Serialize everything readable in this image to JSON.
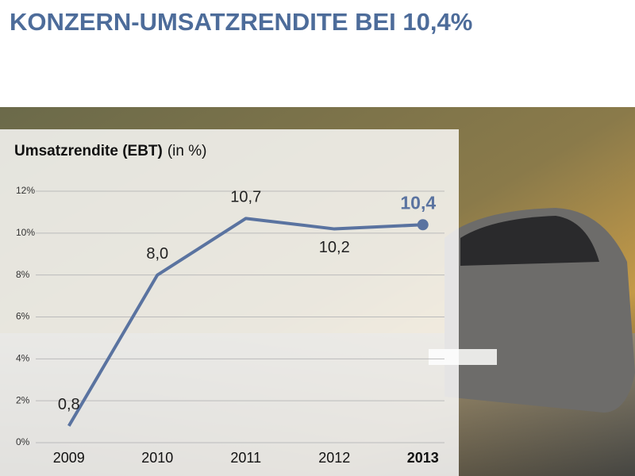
{
  "title": "KONZERN-UMSATZRENDITE BEI 10,4%",
  "chart_data": {
    "type": "line",
    "title": "Umsatzrendite (EBT)",
    "unit_label": "(in %)",
    "categories": [
      "2009",
      "2010",
      "2011",
      "2012",
      "2013"
    ],
    "series": [
      {
        "color": "#5a73a0",
        "values": [
          0.8,
          8.0,
          10.7,
          10.2,
          10.4
        ],
        "value_labels": [
          "0,8",
          "8,0",
          "10,7",
          "10,2",
          "10,4"
        ]
      }
    ],
    "ylim": [
      0,
      12
    ],
    "yticks": [
      {
        "value": 0,
        "label": "0%"
      },
      {
        "value": 2,
        "label": "2%"
      },
      {
        "value": 4,
        "label": "4%"
      },
      {
        "value": 6,
        "label": "6%"
      },
      {
        "value": 8,
        "label": "8%"
      },
      {
        "value": 10,
        "label": "10%"
      },
      {
        "value": 12,
        "label": "12%"
      }
    ],
    "grid": true,
    "highlight_index": 4
  }
}
